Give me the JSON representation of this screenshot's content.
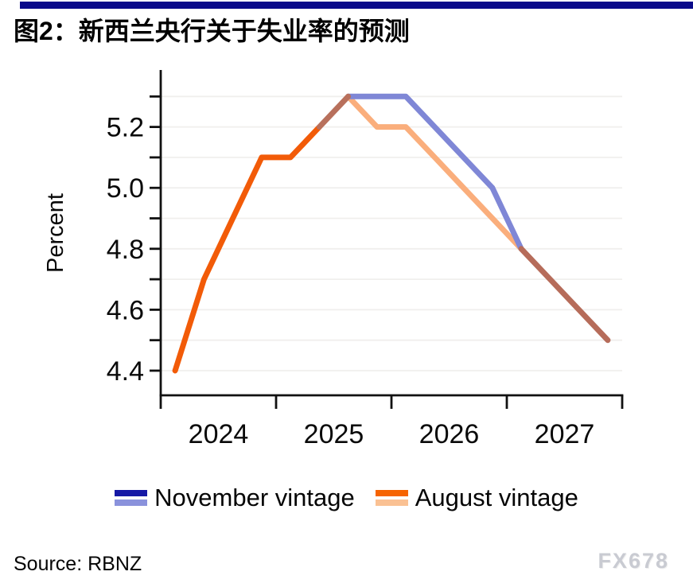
{
  "header": {
    "bar_color": "#0A0A8A",
    "title": "图2：新西兰央行关于失业率的预测"
  },
  "chart_data": {
    "type": "line",
    "title": "图2：新西兰央行关于失业率的预测",
    "title_translation": "Figure 2: RBNZ forecasts for the unemployment rate",
    "xlabel": "",
    "ylabel": "Percent",
    "ylim": [
      4.33,
      5.39
    ],
    "xlim_years": [
      2024,
      2028
    ],
    "grid": "horizontal gridlines every 0.1",
    "legend_position": "bottom",
    "y_grid_values": [
      4.4,
      4.5,
      4.6,
      4.7,
      4.8,
      4.9,
      5.0,
      5.1,
      5.2,
      5.3
    ],
    "y_tick_labels": [
      "4.4",
      "4.6",
      "4.8",
      "5.0",
      "5.2"
    ],
    "x_axis": {
      "tick_boundary_years": [
        2024,
        2025,
        2026,
        2027,
        2028
      ],
      "tick_labels": [
        "2024",
        "2025",
        "2026",
        "2027"
      ]
    },
    "series": [
      {
        "name": "November vintage",
        "quarters": [
          "2025Q2",
          "2025Q3",
          "2025Q4",
          "2026Q1",
          "2026Q2",
          "2026Q3",
          "2026Q4",
          "2027Q1",
          "2027Q2",
          "2027Q3",
          "2027Q4"
        ],
        "values": [
          5.2,
          5.3,
          5.3,
          5.3,
          5.2,
          5.1,
          5.0,
          4.8,
          4.7,
          4.6,
          4.5
        ]
      },
      {
        "name": "August vintage",
        "quarters": [
          "2024Q1",
          "2024Q2",
          "2024Q3",
          "2024Q4",
          "2025Q1",
          "2025Q2",
          "2025Q3",
          "2025Q4",
          "2026Q1",
          "2026Q2",
          "2026Q3",
          "2026Q4",
          "2027Q1",
          "2027Q2",
          "2027Q3",
          "2027Q4"
        ],
        "values": [
          4.4,
          4.7,
          4.9,
          5.1,
          5.1,
          5.2,
          5.3,
          5.2,
          5.2,
          5.1,
          5.0,
          4.9,
          4.8,
          4.7,
          4.6,
          4.5
        ]
      }
    ],
    "render_segments": [
      {
        "name": "august-vintage-forecast",
        "color": "#FAAE7C",
        "points": [
          [
            2025.625,
            5.3
          ],
          [
            2025.875,
            5.2
          ],
          [
            2026.125,
            5.2
          ],
          [
            2026.375,
            5.1
          ],
          [
            2026.625,
            5.0
          ],
          [
            2026.875,
            4.9
          ],
          [
            2027.125,
            4.8
          ]
        ]
      },
      {
        "name": "november-vintage-forecast",
        "color": "#7F87D6",
        "points": [
          [
            2025.625,
            5.3
          ],
          [
            2025.875,
            5.3
          ],
          [
            2026.125,
            5.3
          ],
          [
            2026.375,
            5.2
          ],
          [
            2026.625,
            5.1
          ],
          [
            2026.875,
            5.0
          ],
          [
            2027.125,
            4.8
          ]
        ]
      },
      {
        "name": "shared-actual-history",
        "color": "#F25B08",
        "points": [
          [
            2024.125,
            4.4
          ],
          [
            2024.375,
            4.7
          ],
          [
            2024.625,
            4.9
          ],
          [
            2024.875,
            5.1
          ],
          [
            2025.125,
            5.1
          ],
          [
            2025.375,
            5.2
          ]
        ]
      },
      {
        "name": "overlap-rise",
        "color": "#B8705C",
        "points": [
          [
            2025.375,
            5.2
          ],
          [
            2025.625,
            5.3
          ]
        ]
      },
      {
        "name": "overlap-decline",
        "color": "#B66C5A",
        "points": [
          [
            2027.125,
            4.8
          ],
          [
            2027.375,
            4.7
          ],
          [
            2027.625,
            4.6
          ],
          [
            2027.875,
            4.5
          ]
        ]
      }
    ]
  },
  "legend": {
    "items": [
      {
        "label": "November vintage",
        "top_color": "#1518A5",
        "bottom_color": "#8A92DC"
      },
      {
        "label": "August vintage",
        "top_color": "#F66300",
        "bottom_color": "#FAC193"
      }
    ]
  },
  "footer": {
    "source": "Source: RBNZ",
    "watermark": "FX678"
  }
}
